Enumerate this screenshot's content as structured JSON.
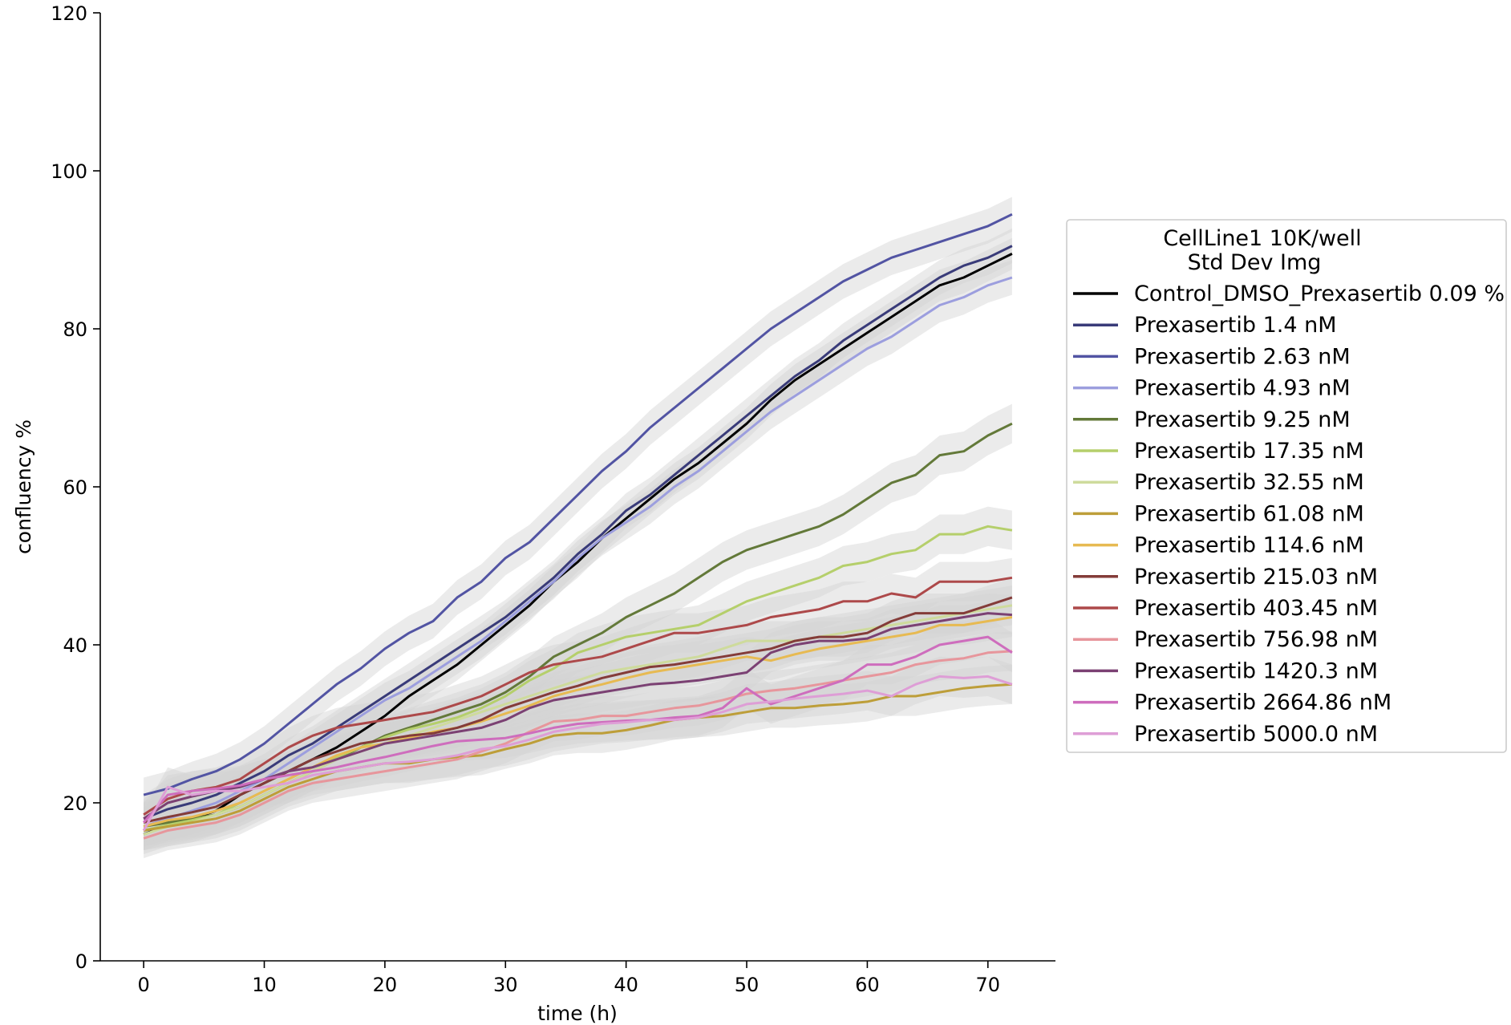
{
  "chart_data": {
    "type": "line",
    "title": "",
    "xlabel": "time (h)",
    "ylabel": "confluency %",
    "xlim": [
      -3.6,
      75.6
    ],
    "ylim": [
      0,
      120
    ],
    "xticks": [
      0,
      10,
      20,
      30,
      40,
      50,
      60,
      70
    ],
    "yticks": [
      0,
      20,
      40,
      60,
      80,
      100,
      120
    ],
    "grid": false,
    "error_band": "std",
    "band_color": "#d3d3d3",
    "legend": {
      "placement": "right",
      "title_lines": [
        "CellLine1 10K/well",
        "Std Dev Img"
      ]
    },
    "x": [
      0,
      2,
      4,
      6,
      8,
      10,
      12,
      14,
      16,
      18,
      20,
      22,
      24,
      26,
      28,
      30,
      32,
      34,
      36,
      38,
      40,
      42,
      44,
      46,
      48,
      50,
      52,
      54,
      56,
      58,
      60,
      62,
      64,
      66,
      68,
      70,
      72
    ],
    "series": [
      {
        "name": "Control_DMSO_Prexasertib 0.09 %",
        "color": "#000000",
        "sd": 2.0,
        "values": [
          16,
          17.2,
          18,
          19,
          21,
          22.5,
          24,
          25.5,
          27,
          29,
          31,
          33.5,
          35.5,
          37.5,
          40,
          42.5,
          45,
          48,
          50.5,
          53.5,
          56,
          58.5,
          61,
          63,
          65.5,
          68,
          71,
          73.5,
          75.5,
          77.5,
          79.5,
          81.5,
          83.5,
          85.5,
          86.5,
          88,
          89.5
        ]
      },
      {
        "name": "Prexasertib 1.4 nM",
        "color": "#393b79",
        "sd": 2.2,
        "values": [
          18,
          19.2,
          20,
          21,
          22.5,
          24,
          26,
          27.5,
          29.5,
          31.5,
          33.5,
          35.5,
          37.5,
          39.5,
          41.5,
          43.5,
          46,
          48.5,
          51.5,
          54,
          57,
          59,
          61.5,
          64,
          66.5,
          69,
          71.5,
          74,
          76,
          78.5,
          80.5,
          82.5,
          84.5,
          86.5,
          88,
          89,
          90.5
        ]
      },
      {
        "name": "Prexasertib 2.63 nM",
        "color": "#5254a3",
        "sd": 2.2,
        "values": [
          21,
          21.8,
          23,
          24,
          25.5,
          27.5,
          30,
          32.5,
          35,
          37,
          39.5,
          41.5,
          43,
          46,
          48,
          51,
          53,
          56,
          59,
          62,
          64.5,
          67.5,
          70,
          72.5,
          75,
          77.5,
          80,
          82,
          84,
          86,
          87.5,
          89,
          90,
          91,
          92,
          93,
          94.5
        ]
      },
      {
        "name": "Prexasertib 4.93 nM",
        "color": "#9c9ede",
        "sd": 2.2,
        "values": [
          17,
          18,
          19,
          20,
          21.5,
          23,
          25,
          27,
          29,
          31,
          33,
          34.5,
          36.5,
          38.5,
          40.5,
          43,
          45.5,
          48,
          51,
          53.5,
          55.5,
          57.5,
          60,
          62,
          64.5,
          67,
          69.5,
          71.5,
          73.5,
          75.5,
          77.5,
          79,
          81,
          83,
          84,
          85.5,
          86.5
        ]
      },
      {
        "name": "Prexasertib 9.25 nM",
        "color": "#637939",
        "sd": 2.5,
        "values": [
          17,
          17.5,
          18,
          18.5,
          19.5,
          21,
          22.5,
          24,
          25.5,
          27,
          28.5,
          29.5,
          30.5,
          31.5,
          32.5,
          34,
          36,
          38.5,
          40,
          41.5,
          43.5,
          45,
          46.5,
          48.5,
          50.5,
          52,
          53,
          54,
          55,
          56.5,
          58.5,
          60.5,
          61.5,
          64,
          64.5,
          66.5,
          68
        ]
      },
      {
        "name": "Prexasertib 17.35 nM",
        "color": "#b5cf6b",
        "sd": 2.5,
        "values": [
          16.5,
          17.2,
          17.8,
          18.5,
          20,
          21.5,
          23,
          24.5,
          25.8,
          27,
          28.3,
          29.3,
          30,
          30.8,
          32,
          33.5,
          35.5,
          37,
          39,
          40,
          41,
          41.5,
          42,
          42.5,
          44,
          45.5,
          46.5,
          47.5,
          48.5,
          50,
          50.5,
          51.5,
          52,
          54,
          54,
          55,
          54.5
        ]
      },
      {
        "name": "Prexasertib 32.55 nM",
        "color": "#cedb9c",
        "sd": 2.5,
        "values": [
          16,
          17,
          17.5,
          18.5,
          19.5,
          21,
          22.5,
          24,
          25.5,
          26.5,
          27.5,
          28.5,
          29.5,
          30.5,
          31.5,
          32.5,
          33.5,
          34.5,
          35.5,
          36.5,
          37,
          37.5,
          38,
          38.5,
          39.5,
          40.5,
          40.5,
          40.5,
          41,
          41.5,
          42,
          42.5,
          43,
          43.5,
          44,
          44.5,
          45
        ]
      },
      {
        "name": "Prexasertib 61.08 nM",
        "color": "#bd9e39",
        "sd": 2.5,
        "values": [
          16.5,
          17,
          17.5,
          18,
          19,
          20.5,
          22,
          23,
          24,
          24.5,
          25,
          25,
          25.5,
          25.8,
          26,
          26.8,
          27.5,
          28.5,
          28.8,
          28.8,
          29.2,
          29.8,
          30.5,
          30.8,
          31,
          31.5,
          32,
          32,
          32.3,
          32.5,
          32.8,
          33.5,
          33.5,
          34,
          34.5,
          34.8,
          35
        ]
      },
      {
        "name": "Prexasertib 114.6 nM",
        "color": "#e7ba52",
        "sd": 2.5,
        "values": [
          17,
          17.8,
          18.2,
          19,
          20,
          21.5,
          23,
          24.5,
          26,
          27,
          27.5,
          28.2,
          29,
          29.5,
          30.3,
          31.3,
          32.3,
          33.5,
          34.3,
          35,
          35.8,
          36.5,
          37,
          37.5,
          38,
          38.5,
          38,
          38.8,
          39.5,
          40,
          40.5,
          41,
          41.5,
          42.5,
          42.5,
          43,
          43.5
        ]
      },
      {
        "name": "Prexasertib 215.03 nM",
        "color": "#843c39",
        "sd": 2.5,
        "values": [
          17.5,
          18.2,
          18.8,
          19.5,
          21,
          22.5,
          24,
          25.5,
          26.5,
          27.5,
          28,
          28.5,
          28.8,
          29.5,
          30.5,
          32,
          33,
          34,
          34.8,
          35.8,
          36.5,
          37.2,
          37.5,
          38,
          38.5,
          39,
          39.5,
          40.5,
          41,
          41,
          41.5,
          43,
          44,
          44,
          44,
          45,
          46
        ]
      },
      {
        "name": "Prexasertib 403.45 nM",
        "color": "#ad494a",
        "sd": 2.5,
        "values": [
          18.5,
          20.5,
          21.5,
          22,
          23,
          25,
          27,
          28.5,
          29.5,
          30,
          30.5,
          31,
          31.5,
          32.5,
          33.5,
          35,
          36.5,
          37.5,
          38,
          38.5,
          39.5,
          40.5,
          41.5,
          41.5,
          42,
          42.5,
          43.5,
          44,
          44.5,
          45.5,
          45.5,
          46.5,
          46,
          48,
          48,
          48,
          48.5
        ]
      },
      {
        "name": "Prexasertib 756.98 nM",
        "color": "#e7969c",
        "sd": 2.5,
        "values": [
          15.5,
          16.5,
          17,
          17.5,
          18.5,
          20,
          21.5,
          22.5,
          23,
          23.5,
          24,
          24.5,
          25,
          25.5,
          26.5,
          27.5,
          29,
          30.3,
          30.5,
          31,
          31,
          31.5,
          32,
          32.3,
          33,
          33.8,
          34.2,
          34.5,
          35,
          35.5,
          36,
          36.5,
          37.5,
          38,
          38.3,
          39,
          39.2
        ]
      },
      {
        "name": "Prexasertib 1420.3 nM",
        "color": "#7b4173",
        "sd": 2.5,
        "values": [
          18,
          20,
          20.8,
          21.5,
          22,
          23,
          24,
          24.5,
          25.5,
          26.5,
          27.5,
          28,
          28.5,
          29,
          29.5,
          30.5,
          32,
          33,
          33.5,
          34,
          34.5,
          35,
          35.2,
          35.5,
          36,
          36.5,
          39,
          40,
          40.5,
          40.5,
          40.8,
          42,
          42.5,
          43,
          43.5,
          44,
          43.8
        ]
      },
      {
        "name": "Prexasertib 2664.86 nM",
        "color": "#ce6dbd",
        "sd": 2.5,
        "values": [
          17.5,
          21,
          21.5,
          21.8,
          22.2,
          23,
          23.5,
          24,
          24.5,
          25.2,
          25.8,
          26.5,
          27.2,
          27.8,
          28,
          28.2,
          28.8,
          29.5,
          30,
          30.2,
          30.4,
          30.5,
          30.8,
          31,
          32,
          34.5,
          32.5,
          33.5,
          34.5,
          35.5,
          37.5,
          37.5,
          38.5,
          40,
          40.5,
          41,
          39
        ]
      },
      {
        "name": "Prexasertib 5000.0 nM",
        "color": "#de9ed6",
        "sd": 2.5,
        "values": [
          16.5,
          22,
          21,
          21.5,
          21.5,
          22,
          22.5,
          23.5,
          24,
          24.5,
          25,
          25.2,
          25.5,
          26,
          26.8,
          27.2,
          28,
          29,
          29.5,
          30,
          30.2,
          30.5,
          30.5,
          30.8,
          31.5,
          32.5,
          32.8,
          33.2,
          33.5,
          33.8,
          34.2,
          33.5,
          35,
          36,
          35.8,
          36,
          35
        ]
      }
    ]
  }
}
